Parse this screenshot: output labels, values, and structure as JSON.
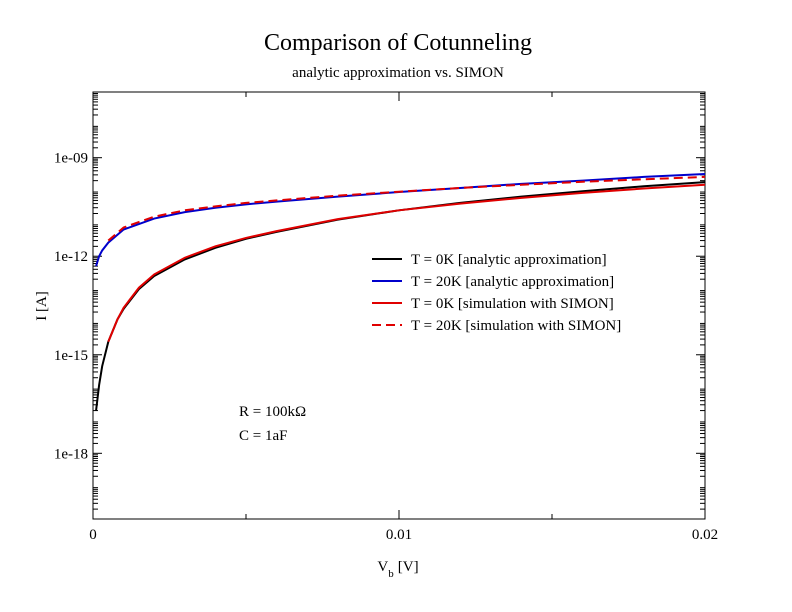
{
  "chart_data": {
    "type": "line",
    "title": "Comparison of Cotunneling",
    "subtitle": "analytic approximation vs. SIMON",
    "xlabel": {
      "main": "V",
      "sub": "b",
      "unit": "[V]"
    },
    "ylabel": "I [A]",
    "xlim": [
      0,
      0.02
    ],
    "ylim": [
      1e-20,
      1e-07
    ],
    "yscale": "log",
    "x_ticks": [
      {
        "value": 0,
        "label": "0"
      },
      {
        "value": 0.01,
        "label": "0.01"
      },
      {
        "value": 0.02,
        "label": "0.02"
      }
    ],
    "x_minor_ticks": [
      0.005,
      0.015
    ],
    "y_ticks": [
      {
        "value": 1e-09,
        "label": "1e-09"
      },
      {
        "value": 1e-12,
        "label": "1e-12"
      },
      {
        "value": 1e-15,
        "label": "1e-15"
      },
      {
        "value": 1e-18,
        "label": "1e-18"
      }
    ],
    "grid": false,
    "legend_position": "right-middle",
    "series": [
      {
        "name": "T = 0K [analytic approximation]",
        "color": "#000000",
        "dash": "solid",
        "x": [
          0.0001,
          0.0002,
          0.0003,
          0.0005,
          0.0008,
          0.001,
          0.0015,
          0.002,
          0.003,
          0.004,
          0.005,
          0.006,
          0.008,
          0.01,
          0.012,
          0.014,
          0.016,
          0.018,
          0.02
        ],
        "y": [
          2e-17,
          1.2e-16,
          4.5e-16,
          2.5e-15,
          1.2e-14,
          2.5e-14,
          1e-13,
          2.5e-13,
          8e-13,
          1.8e-12,
          3.4e-12,
          5.5e-12,
          1.3e-11,
          2.5e-11,
          4.2e-11,
          6.5e-11,
          9.5e-11,
          1.35e-10,
          1.8e-10
        ]
      },
      {
        "name": "T = 20K [analytic approximation]",
        "color": "#0000cc",
        "dash": "solid",
        "x": [
          0.0001,
          0.0002,
          0.0003,
          0.0005,
          0.001,
          0.002,
          0.003,
          0.004,
          0.005,
          0.006,
          0.008,
          0.01,
          0.012,
          0.014,
          0.016,
          0.018,
          0.02
        ],
        "y": [
          5e-13,
          1e-12,
          1.5e-12,
          2.6e-12,
          6.5e-12,
          1.4e-11,
          2.2e-11,
          3e-11,
          3.8e-11,
          4.6e-11,
          6.5e-11,
          9e-11,
          1.2e-10,
          1.6e-10,
          2e-10,
          2.6e-10,
          3.2e-10
        ]
      },
      {
        "name": "T = 0K [simulation with SIMON]",
        "color": "#e00000",
        "dash": "solid",
        "x": [
          0.0005,
          0.0008,
          0.001,
          0.0015,
          0.002,
          0.003,
          0.004,
          0.005,
          0.006,
          0.008,
          0.01,
          0.012,
          0.014,
          0.016,
          0.018,
          0.02
        ],
        "y": [
          2.5e-15,
          1.2e-14,
          2.7e-14,
          1.1e-13,
          2.8e-13,
          9e-13,
          2e-12,
          3.6e-12,
          5.8e-12,
          1.35e-11,
          2.5e-11,
          4e-11,
          6e-11,
          8.5e-11,
          1.15e-10,
          1.5e-10
        ]
      },
      {
        "name": "T = 20K [simulation with SIMON]",
        "color": "#e00000",
        "dash": "dashed",
        "x": [
          0.0005,
          0.001,
          0.002,
          0.003,
          0.004,
          0.005,
          0.006,
          0.008,
          0.01,
          0.012,
          0.014,
          0.016,
          0.018,
          0.02
        ],
        "y": [
          3e-12,
          7.5e-12,
          1.6e-11,
          2.5e-11,
          3.3e-11,
          4.2e-11,
          5e-11,
          7e-11,
          9.2e-11,
          1.2e-10,
          1.5e-10,
          1.85e-10,
          2.2e-10,
          2.6e-10
        ]
      }
    ],
    "annotations": [
      "R = 100kΩ",
      "C = 1aF"
    ]
  }
}
